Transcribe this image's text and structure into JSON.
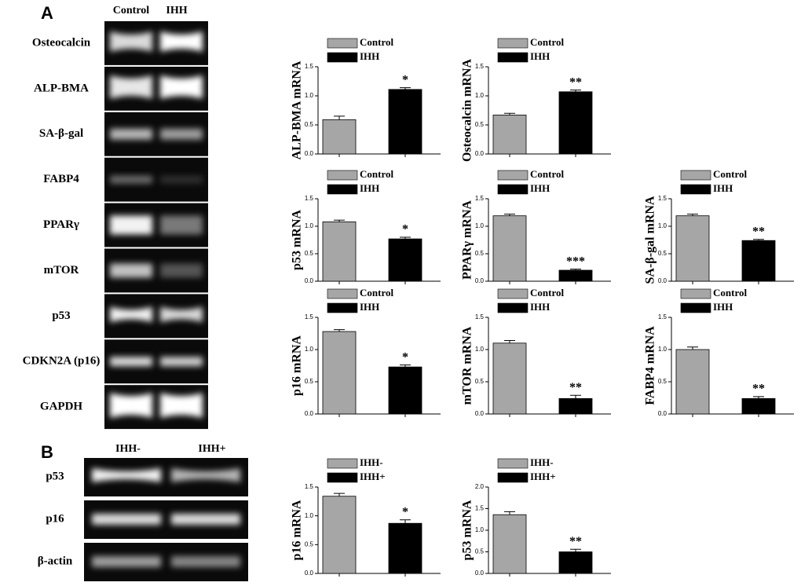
{
  "panels": {
    "a": {
      "letter": "A",
      "columns": [
        "Control",
        "IHH"
      ],
      "rows": [
        "Osteocalcin",
        "ALP-BMA",
        "SA-β-gal",
        "FABP4",
        "PPARγ",
        "mTOR",
        "p53",
        "CDKN2A (p16)",
        "GAPDH"
      ]
    },
    "b": {
      "letter": "B",
      "columns": [
        "IHH-",
        "IHH+"
      ],
      "rows": [
        "p53",
        "p16",
        "β-actin"
      ]
    }
  },
  "chart_data": [
    {
      "type": "bar",
      "y_label": "ALP-BMA mRNA",
      "ylim": [
        0,
        1.5
      ],
      "yticks": [
        {
          "value": 0,
          "label": "0.0"
        },
        0.5,
        {
          "value": 1,
          "label": "1.0"
        },
        1.5
      ],
      "annotation": "*",
      "series": [
        {
          "name": "Control",
          "color": "#a6a6a6",
          "values": [
            0.59
          ],
          "errors": [
            0.06
          ]
        },
        {
          "name": "IHH",
          "color": "#000000",
          "values": [
            1.11
          ],
          "errors": [
            0.03
          ]
        }
      ]
    },
    {
      "type": "bar",
      "y_label": "Osteocalcin mRNA",
      "ylim": [
        0,
        1.5
      ],
      "yticks": [
        {
          "value": 0,
          "label": "0.0"
        },
        0.5,
        {
          "value": 1,
          "label": "1.0"
        },
        1.5
      ],
      "annotation": "**",
      "series": [
        {
          "name": "Control",
          "color": "#a6a6a6",
          "values": [
            0.67
          ],
          "errors": [
            0.03
          ]
        },
        {
          "name": "IHH",
          "color": "#000000",
          "values": [
            1.07
          ],
          "errors": [
            0.03
          ]
        }
      ]
    },
    {
      "type": "bar",
      "y_label": "p53 mRNA",
      "ylim": [
        0,
        1.5
      ],
      "yticks": [
        {
          "value": 0,
          "label": "0.0"
        },
        0.5,
        {
          "value": 1,
          "label": "1.0"
        },
        1.5
      ],
      "annotation": "*",
      "series": [
        {
          "name": "Control",
          "color": "#a6a6a6",
          "values": [
            1.08
          ],
          "errors": [
            0.03
          ]
        },
        {
          "name": "IHH",
          "color": "#000000",
          "values": [
            0.77
          ],
          "errors": [
            0.03
          ]
        }
      ]
    },
    {
      "type": "bar",
      "y_label": "PPARγ mRNA",
      "ylim": [
        0,
        1.5
      ],
      "yticks": [
        {
          "value": 0,
          "label": "0.0"
        },
        0.5,
        {
          "value": 1,
          "label": "1.0"
        },
        1.5
      ],
      "annotation": "***",
      "series": [
        {
          "name": "Control",
          "color": "#a6a6a6",
          "values": [
            1.19
          ],
          "errors": [
            0.03
          ]
        },
        {
          "name": "IHH",
          "color": "#000000",
          "values": [
            0.2
          ],
          "errors": [
            0.02
          ]
        }
      ]
    },
    {
      "type": "bar",
      "y_label": "SA-β-gal mRNA",
      "ylim": [
        0,
        1.5
      ],
      "yticks": [
        {
          "value": 0,
          "label": "0.0"
        },
        0.5,
        {
          "value": 1,
          "label": "1.0"
        },
        1.5
      ],
      "annotation": "**",
      "series": [
        {
          "name": "Control",
          "color": "#a6a6a6",
          "values": [
            1.19
          ],
          "errors": [
            0.03
          ]
        },
        {
          "name": "IHH",
          "color": "#000000",
          "values": [
            0.74
          ],
          "errors": [
            0.02
          ]
        }
      ]
    },
    {
      "type": "bar",
      "y_label": "p16 mRNA",
      "ylim": [
        0,
        1.5
      ],
      "yticks": [
        {
          "value": 0,
          "label": "0.0"
        },
        0.5,
        {
          "value": 1,
          "label": "1.0"
        },
        1.5
      ],
      "annotation": "*",
      "series": [
        {
          "name": "Control",
          "color": "#a6a6a6",
          "values": [
            1.28
          ],
          "errors": [
            0.03
          ]
        },
        {
          "name": "IHH",
          "color": "#000000",
          "values": [
            0.73
          ],
          "errors": [
            0.03
          ]
        }
      ]
    },
    {
      "type": "bar",
      "y_label": "mTOR mRNA",
      "ylim": [
        0,
        1.5
      ],
      "yticks": [
        {
          "value": 0,
          "label": "0.0"
        },
        0.5,
        {
          "value": 1,
          "label": "1.0"
        },
        1.5
      ],
      "annotation": "**",
      "series": [
        {
          "name": "Control",
          "color": "#a6a6a6",
          "values": [
            1.1
          ],
          "errors": [
            0.04
          ]
        },
        {
          "name": "IHH",
          "color": "#000000",
          "values": [
            0.24
          ],
          "errors": [
            0.05
          ]
        }
      ]
    },
    {
      "type": "bar",
      "y_label": "FABP4 mRNA",
      "ylim": [
        0,
        1.5
      ],
      "yticks": [
        {
          "value": 0,
          "label": "0.0"
        },
        0.5,
        {
          "value": 1,
          "label": "1.0"
        },
        1.5
      ],
      "annotation": "**",
      "series": [
        {
          "name": "Control",
          "color": "#a6a6a6",
          "values": [
            1.0
          ],
          "errors": [
            0.04
          ]
        },
        {
          "name": "IHH",
          "color": "#000000",
          "values": [
            0.24
          ],
          "errors": [
            0.03
          ]
        }
      ]
    },
    {
      "type": "bar",
      "y_label": "p16 mRNA",
      "ylim": [
        0,
        1.5
      ],
      "yticks": [
        {
          "value": 0,
          "label": "0.0"
        },
        0.5,
        {
          "value": 1,
          "label": "1.0"
        },
        1.5
      ],
      "annotation": "*",
      "series": [
        {
          "name": "IHH-",
          "color": "#a6a6a6",
          "values": [
            1.34
          ],
          "errors": [
            0.05
          ]
        },
        {
          "name": "IHH+",
          "color": "#000000",
          "values": [
            0.87
          ],
          "errors": [
            0.06
          ]
        }
      ]
    },
    {
      "type": "bar",
      "y_label": "p53 mRNA",
      "ylim": [
        0,
        2
      ],
      "yticks": [
        {
          "value": 0,
          "label": "0.0"
        },
        0.5,
        {
          "value": 1,
          "label": "1.0"
        },
        1.5,
        {
          "value": 2,
          "label": "2.0"
        }
      ],
      "annotation": "**",
      "series": [
        {
          "name": "IHH-",
          "color": "#a6a6a6",
          "values": [
            1.36
          ],
          "errors": [
            0.07
          ]
        },
        {
          "name": "IHH+",
          "color": "#000000",
          "values": [
            0.5
          ],
          "errors": [
            0.06
          ]
        }
      ]
    }
  ]
}
